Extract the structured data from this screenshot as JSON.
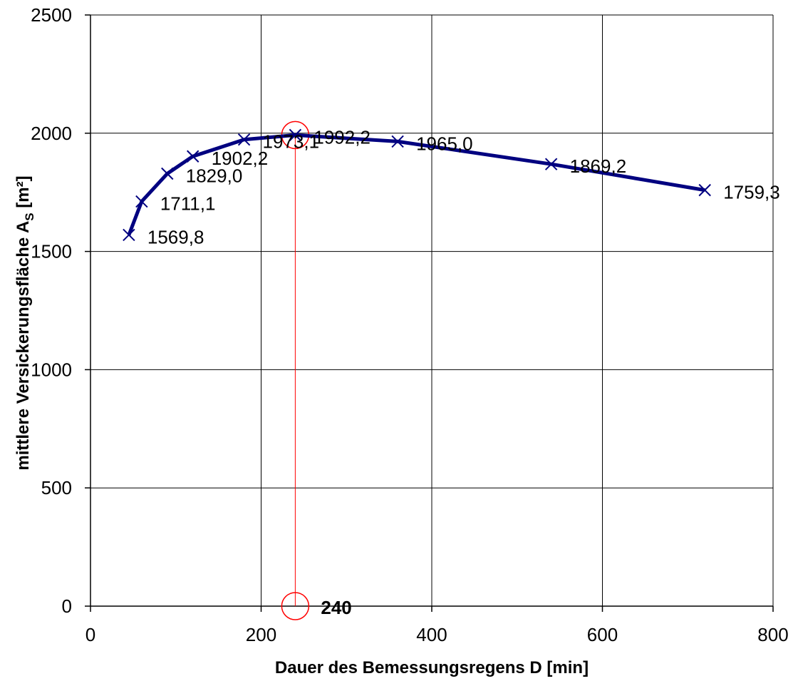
{
  "chart_data": {
    "type": "line",
    "xlabel": "Dauer des Bemessungsregens  D [min]",
    "ylabel": "mittlere Versickerungsfläche A",
    "ylabel_sub": "S",
    "ylabel_unit": " [m²]",
    "xlim": [
      0,
      800
    ],
    "ylim": [
      0,
      2500
    ],
    "xticks": [
      0,
      200,
      400,
      600,
      800
    ],
    "yticks": [
      0,
      500,
      1000,
      1500,
      2000,
      2500
    ],
    "grid": true,
    "series": [
      {
        "marker": "x",
        "color": "#000080",
        "x": [
          45,
          60,
          90,
          120,
          180,
          240,
          360,
          540,
          720
        ],
        "y": [
          1569.8,
          1711.1,
          1829.0,
          1902.2,
          1973.1,
          1992.2,
          1965.0,
          1869.2,
          1759.3
        ],
        "labels": [
          "1569,8",
          "1711,1",
          "1829,0",
          "1902,2",
          "1973,1",
          "1992,2",
          "1965,0",
          "1869,2",
          "1759,3"
        ]
      }
    ],
    "highlight": {
      "x": 240,
      "y": 1992.2,
      "x_label": "240",
      "color": "#ff0000"
    }
  }
}
